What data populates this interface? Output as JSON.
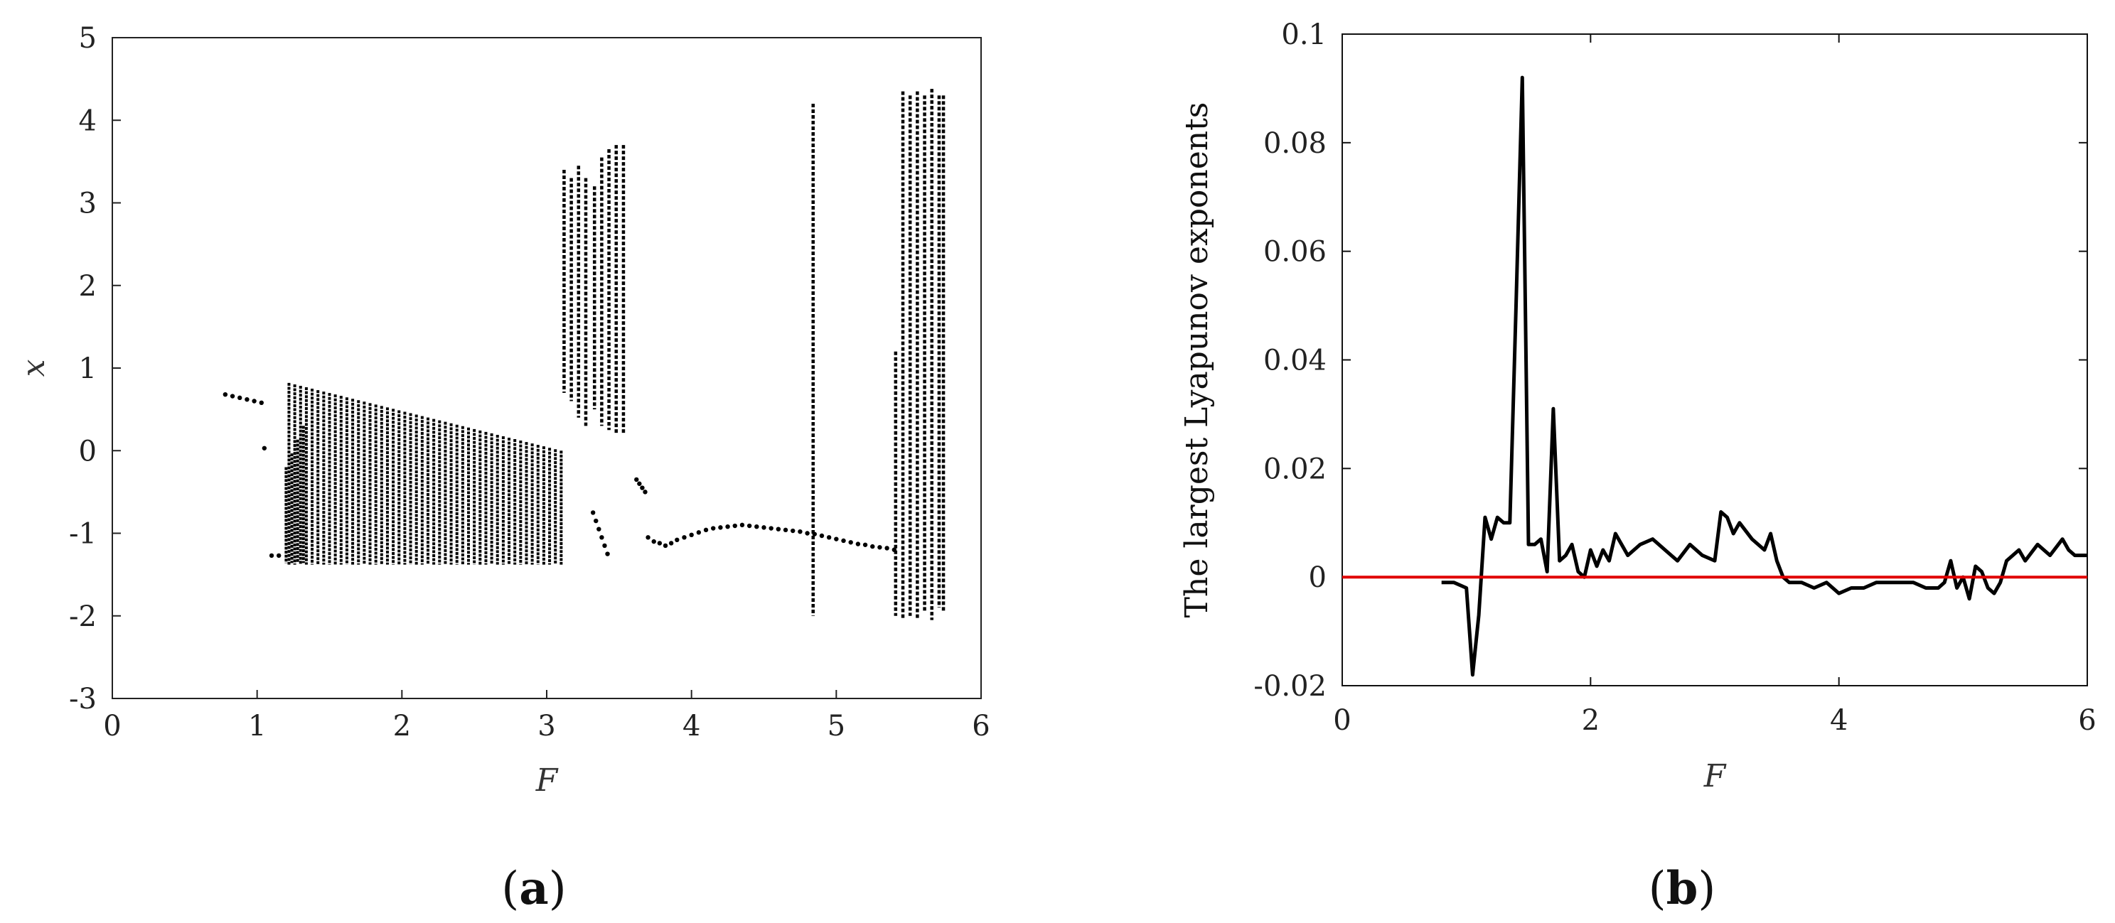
{
  "chart_data": [
    {
      "panel_label": "a",
      "type": "scatter",
      "xlabel": "F",
      "ylabel": "x",
      "xlim": [
        0,
        6
      ],
      "ylim": [
        -3,
        5
      ],
      "x_ticks": [
        0,
        1,
        2,
        3,
        4,
        5,
        6
      ],
      "y_ticks": [
        -3,
        -2,
        -1,
        0,
        1,
        2,
        3,
        4,
        5
      ],
      "grid": false,
      "marker_color": "#000000",
      "bands": [
        {
          "x_start": 1.22,
          "x_end": 3.08,
          "step": 0.04,
          "ymax_start": 0.82,
          "ymax_end": 0.0,
          "ymin": -1.38
        },
        {
          "x_start": 1.2,
          "x_end": 1.3,
          "step": 0.04,
          "ymax_start": -0.2,
          "ymax_end": 0.3,
          "ymin": -1.36
        }
      ],
      "point_groups": [
        {
          "x": [
            0.78,
            0.83,
            0.88,
            0.93,
            0.98,
            1.03
          ],
          "y": [
            0.68,
            0.66,
            0.64,
            0.62,
            0.6,
            0.58
          ]
        },
        {
          "x": [
            1.05,
            1.1,
            1.15
          ],
          "y": [
            0.03,
            -1.27,
            -1.27
          ]
        },
        {
          "x": [
            3.32,
            3.34,
            3.36,
            3.38,
            3.4,
            3.42
          ],
          "y": [
            -0.75,
            -0.85,
            -0.95,
            -1.05,
            -1.15,
            -1.25
          ]
        },
        {
          "x": [
            3.62,
            3.64,
            3.66,
            3.68
          ],
          "y": [
            -0.35,
            -0.4,
            -0.45,
            -0.5
          ]
        },
        {
          "x": [
            3.7,
            3.74,
            3.78,
            3.82,
            3.86,
            3.9,
            3.95,
            4.0,
            4.05,
            4.1,
            4.15,
            4.2,
            4.25,
            4.3,
            4.35,
            4.4,
            4.45,
            4.5,
            4.55,
            4.6,
            4.65,
            4.7,
            4.75,
            4.8,
            4.85,
            4.9,
            4.95,
            5.0,
            5.05,
            5.1,
            5.15,
            5.2,
            5.25,
            5.3,
            5.35,
            5.4
          ],
          "y": [
            -1.05,
            -1.1,
            -1.12,
            -1.15,
            -1.12,
            -1.08,
            -1.05,
            -1.02,
            -0.99,
            -0.96,
            -0.94,
            -0.93,
            -0.92,
            -0.91,
            -0.9,
            -0.91,
            -0.92,
            -0.93,
            -0.94,
            -0.95,
            -0.96,
            -0.97,
            -0.98,
            -1.0,
            -1.01,
            -1.03,
            -1.05,
            -1.07,
            -1.09,
            -1.11,
            -1.13,
            -1.14,
            -1.16,
            -1.17,
            -1.18,
            -1.2
          ]
        }
      ],
      "vertical_bands": [
        {
          "x": 3.12,
          "ymin": 0.7,
          "ymax": 3.4
        },
        {
          "x": 3.17,
          "ymin": 0.6,
          "ymax": 3.3
        },
        {
          "x": 3.22,
          "ymin": 0.4,
          "ymax": 3.45
        },
        {
          "x": 3.27,
          "ymin": 0.3,
          "ymax": 3.3
        },
        {
          "x": 3.33,
          "ymin": 0.5,
          "ymax": 3.2
        },
        {
          "x": 3.38,
          "ymin": 0.3,
          "ymax": 3.55
        },
        {
          "x": 3.43,
          "ymin": 0.25,
          "ymax": 3.65
        },
        {
          "x": 3.48,
          "ymin": 0.2,
          "ymax": 3.7
        },
        {
          "x": 3.53,
          "ymin": 0.2,
          "ymax": 3.7
        },
        {
          "x": 4.84,
          "ymin": -2.0,
          "ymax": 4.2
        },
        {
          "x": 5.41,
          "ymin": -2.0,
          "ymax": 1.2
        },
        {
          "x": 5.46,
          "ymin": -2.05,
          "ymax": 4.35
        },
        {
          "x": 5.51,
          "ymin": -2.0,
          "ymax": 4.3
        },
        {
          "x": 5.56,
          "ymin": -2.05,
          "ymax": 4.35
        },
        {
          "x": 5.61,
          "ymin": -1.95,
          "ymax": 4.3
        },
        {
          "x": 5.66,
          "ymin": -2.05,
          "ymax": 4.38
        },
        {
          "x": 5.71,
          "ymin": -1.9,
          "ymax": 4.3
        },
        {
          "x": 5.74,
          "ymin": -1.95,
          "ymax": 4.3
        }
      ]
    },
    {
      "panel_label": "b",
      "type": "line",
      "xlabel": "F",
      "ylabel": "The largest Lyapunov exponents",
      "xlim": [
        0,
        6
      ],
      "ylim": [
        -0.02,
        0.1
      ],
      "x_ticks": [
        0,
        2,
        4,
        6
      ],
      "y_ticks": [
        "-0.02",
        "0",
        "0.02",
        "0.04",
        "0.06",
        "0.08",
        "0.1"
      ],
      "grid": false,
      "series": [
        {
          "color": "#000000",
          "x": [
            0.8,
            0.9,
            1.0,
            1.05,
            1.1,
            1.15,
            1.2,
            1.25,
            1.3,
            1.35,
            1.4,
            1.45,
            1.5,
            1.55,
            1.6,
            1.65,
            1.7,
            1.75,
            1.8,
            1.85,
            1.9,
            1.95,
            2.0,
            2.05,
            2.1,
            2.15,
            2.2,
            2.3,
            2.4,
            2.5,
            2.6,
            2.7,
            2.8,
            2.9,
            3.0,
            3.05,
            3.1,
            3.15,
            3.2,
            3.3,
            3.4,
            3.45,
            3.5,
            3.55,
            3.6,
            3.7,
            3.8,
            3.9,
            4.0,
            4.1,
            4.2,
            4.3,
            4.4,
            4.5,
            4.6,
            4.7,
            4.8,
            4.85,
            4.9,
            4.95,
            5.0,
            5.05,
            5.1,
            5.15,
            5.2,
            5.25,
            5.3,
            5.35,
            5.4,
            5.45,
            5.5,
            5.6,
            5.7,
            5.8,
            5.85,
            5.9,
            5.95,
            6.0
          ],
          "y": [
            -0.001,
            -0.001,
            -0.002,
            -0.018,
            -0.007,
            0.011,
            0.007,
            0.011,
            0.01,
            0.01,
            0.05,
            0.092,
            0.006,
            0.006,
            0.007,
            0.001,
            0.031,
            0.003,
            0.004,
            0.006,
            0.001,
            0.0,
            0.005,
            0.002,
            0.005,
            0.003,
            0.008,
            0.004,
            0.006,
            0.007,
            0.005,
            0.003,
            0.006,
            0.004,
            0.003,
            0.012,
            0.011,
            0.008,
            0.01,
            0.007,
            0.005,
            0.008,
            0.003,
            0.0,
            -0.001,
            -0.001,
            -0.002,
            -0.001,
            -0.003,
            -0.002,
            -0.002,
            -0.001,
            -0.001,
            -0.001,
            -0.001,
            -0.002,
            -0.002,
            -0.001,
            0.003,
            -0.002,
            0.0,
            -0.004,
            0.002,
            0.001,
            -0.002,
            -0.003,
            -0.001,
            0.003,
            0.004,
            0.005,
            0.003,
            0.006,
            0.004,
            0.007,
            0.005,
            0.004,
            0.004,
            0.004
          ]
        },
        {
          "color": "#e00000",
          "x": [
            0,
            6
          ],
          "y": [
            0,
            0
          ]
        }
      ]
    }
  ],
  "panel_labels": {
    "a_open": "(",
    "a": "a",
    "a_close": ")",
    "b_open": "(",
    "b": "b",
    "b_close": ")"
  }
}
